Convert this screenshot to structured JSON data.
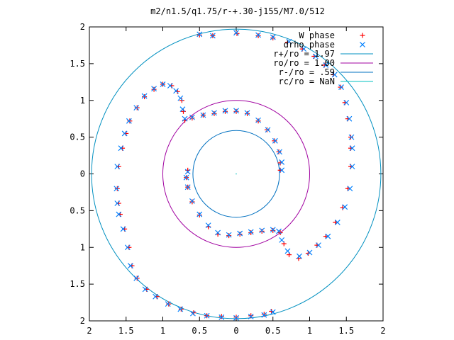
{
  "chart_data": {
    "type": "scatter",
    "title": "m2/n1.5/q1.75/r-+.30-j155/M7.0/512",
    "xlabel": "",
    "ylabel": "",
    "xlim": [
      -2,
      2
    ],
    "ylim": [
      -2,
      2
    ],
    "grid": false,
    "legend_position": "top-right",
    "x_ticks": [
      -2,
      -1.5,
      -1,
      -0.5,
      0,
      0.5,
      1,
      1.5,
      2
    ],
    "y_ticks": [
      -2,
      -1.5,
      -1,
      -0.5,
      0,
      0.5,
      1,
      1.5,
      2
    ],
    "x_tick_labels": [
      "2",
      "1.5",
      "1",
      "0.5",
      "0",
      "0.5",
      "1",
      "1.5",
      "2"
    ],
    "y_tick_labels": [
      "2",
      "1.5",
      "1",
      "0.5",
      "0",
      "0.5",
      "1",
      "1.5",
      "2"
    ],
    "series": [
      {
        "name": "W phase",
        "marker": "plus",
        "color": "#ff0000",
        "points": [
          [
            0.01,
            1.91
          ],
          [
            -0.32,
            1.88
          ],
          [
            -0.5,
            1.89
          ],
          [
            0.3,
            1.88
          ],
          [
            0.5,
            1.85
          ],
          [
            0.7,
            1.79
          ],
          [
            0.9,
            1.7
          ],
          [
            1.06,
            1.6
          ],
          [
            1.2,
            1.48
          ],
          [
            1.32,
            1.35
          ],
          [
            1.42,
            1.18
          ],
          [
            1.48,
            0.97
          ],
          [
            1.52,
            0.75
          ],
          [
            1.56,
            0.5
          ],
          [
            1.56,
            0.35
          ],
          [
            1.56,
            0.1
          ],
          [
            1.52,
            -0.2
          ],
          [
            1.45,
            -0.46
          ],
          [
            1.35,
            -0.66
          ],
          [
            1.22,
            -0.85
          ],
          [
            1.1,
            -0.97
          ],
          [
            0.98,
            -1.08
          ],
          [
            0.85,
            -1.15
          ],
          [
            0.72,
            -1.1
          ],
          [
            0.65,
            -0.95
          ],
          [
            0.6,
            -0.8
          ],
          [
            0.5,
            -0.77
          ],
          [
            0.35,
            -0.78
          ],
          [
            0.2,
            -0.8
          ],
          [
            0.05,
            -0.82
          ],
          [
            -0.1,
            -0.84
          ],
          [
            -0.25,
            -0.82
          ],
          [
            -0.38,
            -0.72
          ],
          [
            -0.5,
            -0.56
          ],
          [
            -0.6,
            -0.38
          ],
          [
            -0.66,
            -0.18
          ],
          [
            -0.68,
            -0.05
          ],
          [
            -0.66,
            0.05
          ],
          [
            0.6,
            0.05
          ],
          [
            0.6,
            0.15
          ],
          [
            0.58,
            0.3
          ],
          [
            0.52,
            0.45
          ],
          [
            0.42,
            0.6
          ],
          [
            0.3,
            0.72
          ],
          [
            0.15,
            0.82
          ],
          [
            0.0,
            0.85
          ],
          [
            -0.15,
            0.85
          ],
          [
            -0.3,
            0.82
          ],
          [
            -0.45,
            0.8
          ],
          [
            -0.6,
            0.76
          ],
          [
            -0.7,
            0.73
          ],
          [
            -0.72,
            0.85
          ],
          [
            -0.74,
            1.0
          ],
          [
            -0.8,
            1.12
          ],
          [
            -0.88,
            1.2
          ],
          [
            -1.0,
            1.22
          ],
          [
            -1.12,
            1.15
          ],
          [
            -1.25,
            1.05
          ],
          [
            -1.35,
            0.9
          ],
          [
            -1.45,
            0.72
          ],
          [
            -1.5,
            0.55
          ],
          [
            -1.55,
            0.35
          ],
          [
            -1.6,
            0.1
          ],
          [
            -1.62,
            -0.2
          ],
          [
            -1.6,
            -0.4
          ],
          [
            -1.58,
            -0.55
          ],
          [
            -1.52,
            -0.75
          ],
          [
            -1.46,
            -1.0
          ],
          [
            -1.42,
            -1.25
          ],
          [
            -1.35,
            -1.42
          ],
          [
            -1.22,
            -1.57
          ],
          [
            -1.08,
            -1.67
          ],
          [
            -0.92,
            -1.77
          ],
          [
            -0.75,
            -1.84
          ],
          [
            -0.58,
            -1.89
          ],
          [
            -0.4,
            -1.93
          ],
          [
            -0.2,
            -1.94
          ],
          [
            0.0,
            -1.95
          ],
          [
            0.2,
            -1.93
          ],
          [
            0.38,
            -1.91
          ],
          [
            0.48,
            -1.87
          ]
        ]
      },
      {
        "name": "drho phase",
        "marker": "cross",
        "color": "#0080ff",
        "points": [
          [
            0.0,
            1.92
          ],
          [
            -0.32,
            1.88
          ],
          [
            -0.5,
            1.9
          ],
          [
            0.3,
            1.89
          ],
          [
            0.5,
            1.86
          ],
          [
            0.72,
            1.8
          ],
          [
            0.92,
            1.7
          ],
          [
            1.08,
            1.6
          ],
          [
            1.22,
            1.48
          ],
          [
            1.34,
            1.35
          ],
          [
            1.43,
            1.18
          ],
          [
            1.5,
            0.97
          ],
          [
            1.54,
            0.75
          ],
          [
            1.57,
            0.5
          ],
          [
            1.58,
            0.35
          ],
          [
            1.58,
            0.1
          ],
          [
            1.55,
            -0.2
          ],
          [
            1.48,
            -0.45
          ],
          [
            1.38,
            -0.66
          ],
          [
            1.25,
            -0.85
          ],
          [
            1.12,
            -0.97
          ],
          [
            1.0,
            -1.07
          ],
          [
            0.86,
            -1.12
          ],
          [
            0.7,
            -1.05
          ],
          [
            0.62,
            -0.9
          ],
          [
            0.58,
            -0.78
          ],
          [
            0.5,
            -0.76
          ],
          [
            0.35,
            -0.77
          ],
          [
            0.2,
            -0.79
          ],
          [
            0.05,
            -0.81
          ],
          [
            -0.1,
            -0.83
          ],
          [
            -0.25,
            -0.8
          ],
          [
            -0.38,
            -0.7
          ],
          [
            -0.5,
            -0.55
          ],
          [
            -0.6,
            -0.37
          ],
          [
            -0.66,
            -0.18
          ],
          [
            -0.68,
            -0.05
          ],
          [
            -0.66,
            0.03
          ],
          [
            0.62,
            0.05
          ],
          [
            0.62,
            0.16
          ],
          [
            0.59,
            0.3
          ],
          [
            0.53,
            0.45
          ],
          [
            0.43,
            0.6
          ],
          [
            0.3,
            0.73
          ],
          [
            0.15,
            0.83
          ],
          [
            0.0,
            0.86
          ],
          [
            -0.15,
            0.86
          ],
          [
            -0.3,
            0.83
          ],
          [
            -0.45,
            0.8
          ],
          [
            -0.6,
            0.77
          ],
          [
            -0.7,
            0.75
          ],
          [
            -0.73,
            0.88
          ],
          [
            -0.76,
            1.03
          ],
          [
            -0.82,
            1.13
          ],
          [
            -0.9,
            1.2
          ],
          [
            -1.0,
            1.22
          ],
          [
            -1.12,
            1.16
          ],
          [
            -1.25,
            1.06
          ],
          [
            -1.36,
            0.9
          ],
          [
            -1.46,
            0.72
          ],
          [
            -1.52,
            0.55
          ],
          [
            -1.57,
            0.35
          ],
          [
            -1.62,
            0.1
          ],
          [
            -1.63,
            -0.2
          ],
          [
            -1.62,
            -0.4
          ],
          [
            -1.6,
            -0.55
          ],
          [
            -1.54,
            -0.75
          ],
          [
            -1.48,
            -1.0
          ],
          [
            -1.44,
            -1.25
          ],
          [
            -1.36,
            -1.42
          ],
          [
            -1.24,
            -1.57
          ],
          [
            -1.1,
            -1.67
          ],
          [
            -0.93,
            -1.77
          ],
          [
            -0.76,
            -1.84
          ],
          [
            -0.59,
            -1.9
          ],
          [
            -0.4,
            -1.93
          ],
          [
            -0.2,
            -1.95
          ],
          [
            0.0,
            -1.96
          ],
          [
            0.2,
            -1.94
          ],
          [
            0.38,
            -1.92
          ],
          [
            0.5,
            -1.88
          ]
        ]
      }
    ],
    "circles": [
      {
        "name": "r+/ro = 1.97",
        "radius": 1.97,
        "color": "#0090c0"
      },
      {
        "name": "ro/ro = 1.00",
        "radius": 1.0,
        "color": "#a000a0"
      },
      {
        "name": "r-/ro = .59",
        "radius": 0.59,
        "color": "#0070c0"
      },
      {
        "name": "rc/ro = NaN",
        "radius": null,
        "color": "#00c0c0"
      }
    ]
  }
}
